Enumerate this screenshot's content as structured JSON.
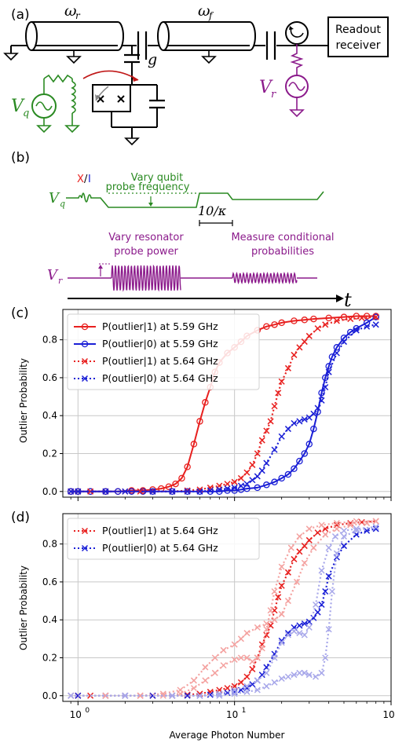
{
  "panel_labels": {
    "a": "(a)",
    "b": "(b)",
    "c": "(c)",
    "d": "(d)"
  },
  "circuit": {
    "omega_r": "ω",
    "omega_r_sub": "r",
    "omega_f": "ω",
    "omega_f_sub": "f",
    "coupling": "g",
    "readout_line1": "Readout",
    "readout_line2": "receiver",
    "vq": "V",
    "vq_sub": "q",
    "vr": "V",
    "vr_sub": "r"
  },
  "timing": {
    "xi_x": "X",
    "xi_slash": "/",
    "xi_i": "I",
    "qubit_probe_line1": "Vary qubit",
    "qubit_probe_line2": "probe frequency",
    "kappa_label": "10/κ",
    "resonator_line1": "Vary resonator",
    "resonator_line2": "probe power",
    "measure_line1": "Measure conditional",
    "measure_line2": "probabilities",
    "vq": "V",
    "vq_sub": "q",
    "vr": "V",
    "vr_sub": "r",
    "t_axis": "t"
  },
  "colors": {
    "red": "#e8201f",
    "blue": "#1a1fd6",
    "green": "#2a8a22",
    "purple": "#8b1a8b",
    "light_red": "#f4a2a0",
    "light_blue": "#a8a8ea"
  },
  "chart_data": [
    {
      "type": "line",
      "panel": "(c)",
      "xscale": "log",
      "xlim": [
        0.8,
        100
      ],
      "ylim": [
        -0.03,
        0.96
      ],
      "ylabel": "Outlier Probability",
      "xlabel": "",
      "grid": true,
      "legend_position": "top-left",
      "yticks": [
        "0.0",
        "0.2",
        "0.4",
        "0.6",
        "0.8"
      ],
      "series": [
        {
          "name": "P(outlier|1) at 5.59 GHz",
          "color": "#e8201f",
          "style": "solid",
          "marker": "o",
          "x": [
            0.9,
            1.0,
            1.2,
            1.5,
            1.8,
            2.2,
            2.6,
            3.0,
            3.4,
            3.8,
            4.2,
            4.6,
            5.0,
            5.5,
            6.0,
            6.5,
            7.0,
            7.5,
            8.0,
            9.0,
            10,
            11,
            12,
            14,
            16,
            18,
            20,
            24,
            28,
            32,
            40,
            50,
            60,
            70,
            80
          ],
          "y": [
            0.0,
            0.0,
            0.0,
            0.0,
            0.0,
            0.005,
            0.005,
            0.01,
            0.015,
            0.025,
            0.04,
            0.07,
            0.13,
            0.25,
            0.37,
            0.47,
            0.55,
            0.63,
            0.68,
            0.73,
            0.76,
            0.79,
            0.82,
            0.85,
            0.87,
            0.88,
            0.89,
            0.9,
            0.905,
            0.91,
            0.915,
            0.92,
            0.925,
            0.925,
            0.925
          ]
        },
        {
          "name": "P(outlier|0) at 5.59 GHz",
          "color": "#1a1fd6",
          "style": "solid",
          "marker": "o",
          "x": [
            0.9,
            1.0,
            1.2,
            1.5,
            1.8,
            2.2,
            2.6,
            3.0,
            4.0,
            5.0,
            6.0,
            7.0,
            8.0,
            9.0,
            10,
            11,
            12,
            14,
            16,
            18,
            20,
            22,
            24,
            26,
            28,
            30,
            32,
            34,
            36,
            38,
            40,
            42,
            45,
            50,
            55,
            60,
            70,
            80
          ],
          "y": [
            0.0,
            0.0,
            0.0,
            0.0,
            0.0,
            0.0,
            0.0,
            0.0,
            0.0,
            0.0,
            0.0,
            0.0,
            0.0,
            0.005,
            0.005,
            0.01,
            0.015,
            0.02,
            0.035,
            0.05,
            0.07,
            0.09,
            0.12,
            0.16,
            0.2,
            0.25,
            0.33,
            0.42,
            0.52,
            0.6,
            0.66,
            0.71,
            0.76,
            0.81,
            0.84,
            0.86,
            0.89,
            0.92
          ]
        },
        {
          "name": "P(outlier|1) at 5.64 GHz",
          "color": "#e8201f",
          "style": "dotted",
          "marker": "x",
          "x": [
            0.9,
            1.0,
            1.2,
            1.5,
            2.0,
            2.5,
            3.0,
            4.0,
            5.0,
            6.0,
            7.0,
            8.0,
            9.0,
            10,
            11,
            12,
            13,
            14,
            15,
            16,
            17,
            18,
            19,
            20,
            22,
            24,
            26,
            28,
            30,
            34,
            38,
            45,
            55,
            65,
            80
          ],
          "y": [
            0.0,
            0.0,
            0.0,
            0.0,
            0.0,
            0.0,
            0.0,
            0.0,
            0.005,
            0.01,
            0.02,
            0.03,
            0.04,
            0.05,
            0.07,
            0.1,
            0.14,
            0.2,
            0.27,
            0.32,
            0.37,
            0.45,
            0.52,
            0.58,
            0.65,
            0.72,
            0.76,
            0.79,
            0.82,
            0.86,
            0.88,
            0.9,
            0.91,
            0.915,
            0.92
          ]
        },
        {
          "name": "P(outlier|0) at 5.64 GHz",
          "color": "#1a1fd6",
          "style": "dotted",
          "marker": "x",
          "x": [
            0.9,
            1.0,
            1.5,
            2.0,
            3.0,
            4.0,
            5.0,
            6.0,
            7.0,
            8.0,
            9.0,
            10,
            11,
            12,
            13,
            14,
            15,
            16,
            18,
            20,
            22,
            24,
            26,
            28,
            30,
            32,
            34,
            36,
            38,
            40,
            45,
            50,
            60,
            70,
            80
          ],
          "y": [
            0.0,
            0.0,
            0.0,
            0.0,
            0.0,
            0.0,
            0.0,
            0.0,
            0.005,
            0.01,
            0.015,
            0.02,
            0.03,
            0.04,
            0.06,
            0.08,
            0.11,
            0.15,
            0.22,
            0.29,
            0.33,
            0.36,
            0.37,
            0.38,
            0.39,
            0.41,
            0.44,
            0.48,
            0.55,
            0.63,
            0.73,
            0.79,
            0.85,
            0.87,
            0.88
          ]
        }
      ]
    },
    {
      "type": "line",
      "panel": "(d)",
      "xscale": "log",
      "xlim": [
        0.8,
        100
      ],
      "ylim": [
        -0.03,
        0.96
      ],
      "ylabel": "Outlier Probability",
      "xlabel": "Average Photon Number",
      "grid": true,
      "legend_position": "top-left",
      "yticks": [
        "0.0",
        "0.2",
        "0.4",
        "0.6",
        "0.8"
      ],
      "xticks": [
        {
          "base": "10",
          "exp": "0",
          "value": 1
        },
        {
          "base": "10",
          "exp": "1",
          "value": 10
        },
        {
          "base": "10",
          "exp": "2",
          "value": 100
        }
      ],
      "series": [
        {
          "name": "P(outlier|1) at 5.64 GHz",
          "color": "#e8201f",
          "style": "dotted",
          "marker": "x",
          "x": [
            0.9,
            1.0,
            1.2,
            1.5,
            2.0,
            2.5,
            3.0,
            4.0,
            5.0,
            6.0,
            7.0,
            8.0,
            9.0,
            10,
            11,
            12,
            13,
            14,
            15,
            16,
            17,
            18,
            19,
            20,
            22,
            24,
            26,
            28,
            30,
            34,
            38,
            45,
            55,
            65,
            80
          ],
          "y": [
            0.0,
            0.0,
            0.0,
            0.0,
            0.0,
            0.0,
            0.0,
            0.0,
            0.005,
            0.01,
            0.02,
            0.03,
            0.04,
            0.05,
            0.07,
            0.1,
            0.14,
            0.2,
            0.27,
            0.32,
            0.37,
            0.45,
            0.52,
            0.58,
            0.65,
            0.72,
            0.76,
            0.79,
            0.82,
            0.86,
            0.88,
            0.9,
            0.91,
            0.915,
            0.92
          ]
        },
        {
          "name": "P(outlier|0) at 5.64 GHz",
          "color": "#1a1fd6",
          "style": "dotted",
          "marker": "x",
          "x": [
            0.9,
            1.0,
            1.5,
            2.0,
            3.0,
            4.0,
            5.0,
            6.0,
            7.0,
            8.0,
            9.0,
            10,
            11,
            12,
            13,
            14,
            15,
            16,
            18,
            20,
            22,
            24,
            26,
            28,
            30,
            32,
            34,
            36,
            38,
            40,
            45,
            50,
            60,
            70,
            80
          ],
          "y": [
            0.0,
            0.0,
            0.0,
            0.0,
            0.0,
            0.0,
            0.0,
            0.0,
            0.005,
            0.01,
            0.015,
            0.02,
            0.03,
            0.04,
            0.06,
            0.08,
            0.11,
            0.15,
            0.22,
            0.29,
            0.33,
            0.36,
            0.37,
            0.38,
            0.39,
            0.41,
            0.44,
            0.48,
            0.55,
            0.63,
            0.73,
            0.79,
            0.85,
            0.87,
            0.88
          ]
        },
        {
          "color": "#f4a2a0",
          "style": "dotted",
          "marker": "x",
          "x": [
            0.9,
            1.5,
            2.5,
            3.5,
            4.5,
            5.5,
            6.5,
            7.5,
            8.5,
            10,
            11,
            12,
            14,
            16,
            18,
            20,
            22,
            25,
            28,
            32,
            38,
            45,
            55,
            70,
            80
          ],
          "y": [
            0.0,
            0.0,
            0.0,
            0.01,
            0.03,
            0.08,
            0.15,
            0.2,
            0.24,
            0.27,
            0.3,
            0.33,
            0.36,
            0.38,
            0.4,
            0.43,
            0.5,
            0.6,
            0.7,
            0.78,
            0.85,
            0.88,
            0.9,
            0.91,
            0.92
          ]
        },
        {
          "color": "#f4a2a0",
          "style": "dotted",
          "marker": "x",
          "x": [
            0.9,
            1.5,
            2.5,
            3.5,
            4.5,
            5.5,
            6.5,
            7.5,
            8.5,
            10,
            11,
            12,
            13,
            14,
            15,
            16,
            17,
            18,
            20,
            23,
            26,
            30,
            36,
            45,
            60,
            80
          ],
          "y": [
            0.0,
            0.0,
            0.0,
            0.0,
            0.01,
            0.04,
            0.08,
            0.12,
            0.16,
            0.19,
            0.2,
            0.2,
            0.18,
            0.2,
            0.25,
            0.35,
            0.45,
            0.55,
            0.68,
            0.78,
            0.84,
            0.88,
            0.9,
            0.91,
            0.92,
            0.92
          ]
        },
        {
          "color": "#a8a8ea",
          "style": "dotted",
          "marker": "x",
          "x": [
            0.9,
            2,
            4,
            6,
            8,
            10,
            12,
            14,
            16,
            18,
            20,
            22,
            24,
            26,
            28,
            30,
            33,
            36,
            40,
            44,
            50,
            60,
            80
          ],
          "y": [
            0.0,
            0.0,
            0.0,
            0.0,
            0.01,
            0.03,
            0.05,
            0.08,
            0.12,
            0.2,
            0.28,
            0.32,
            0.34,
            0.33,
            0.32,
            0.36,
            0.48,
            0.66,
            0.78,
            0.84,
            0.87,
            0.88,
            0.89
          ]
        },
        {
          "color": "#a8a8ea",
          "style": "dotted",
          "marker": "x",
          "x": [
            0.9,
            2,
            4,
            6,
            8,
            10,
            12,
            14,
            16,
            18,
            20,
            22,
            24,
            26,
            28,
            30,
            33,
            36,
            38,
            40,
            42,
            45,
            50,
            60,
            80
          ],
          "y": [
            0.0,
            0.0,
            0.0,
            0.0,
            0.0,
            0.01,
            0.02,
            0.03,
            0.05,
            0.07,
            0.09,
            0.1,
            0.11,
            0.12,
            0.12,
            0.11,
            0.1,
            0.12,
            0.2,
            0.35,
            0.55,
            0.75,
            0.84,
            0.87,
            0.89
          ]
        }
      ]
    }
  ]
}
